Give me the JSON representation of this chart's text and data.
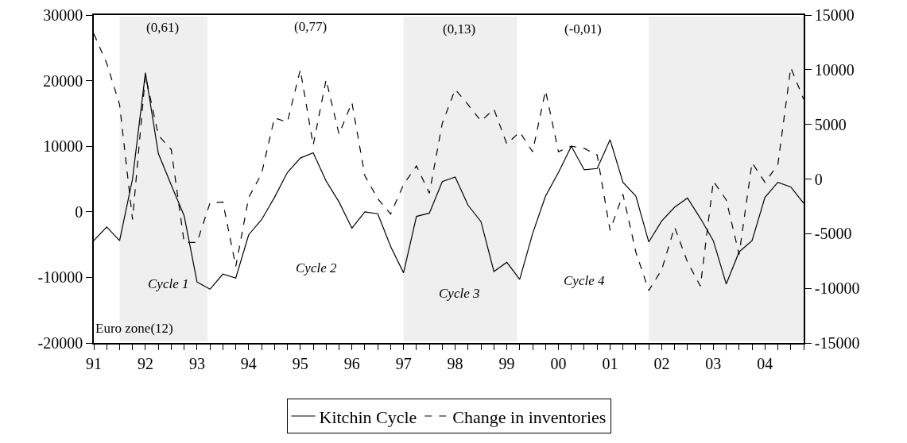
{
  "chart_data": {
    "type": "line",
    "x": [
      1991,
      1991.25,
      1991.5,
      1991.75,
      1992,
      1992.25,
      1992.5,
      1992.75,
      1993,
      1993.25,
      1993.5,
      1993.75,
      1994,
      1994.25,
      1994.5,
      1994.75,
      1995,
      1995.25,
      1995.5,
      1995.75,
      1996,
      1996.25,
      1996.5,
      1996.75,
      1997,
      1997.25,
      1997.5,
      1997.75,
      1998,
      1998.25,
      1998.5,
      1998.75,
      1999,
      1999.25,
      1999.5,
      1999.75,
      2000,
      2000.25,
      2000.5,
      2000.75,
      2001,
      2001.25,
      2001.5,
      2001.75,
      2002,
      2002.25,
      2002.5,
      2002.75,
      2003,
      2003.25,
      2003.5,
      2003.75,
      2004,
      2004.25,
      2004.5,
      2004.75
    ],
    "series": [
      {
        "name": "Kitchin Cycle",
        "color": "#000000",
        "line_style": "solid",
        "values": [
          -4400,
          -2300,
          -4400,
          5000,
          21200,
          8900,
          4100,
          -600,
          -10700,
          -11800,
          -9500,
          -10100,
          -3500,
          -1200,
          2200,
          6000,
          8200,
          9000,
          4700,
          1500,
          -2500,
          0,
          -300,
          -5300,
          -9300,
          -700,
          -200,
          4600,
          5300,
          1000,
          -1500,
          -9100,
          -7700,
          -10300,
          -3300,
          2400,
          6000,
          10000,
          6400,
          6600,
          11000,
          4500,
          2400,
          -4600,
          -1400,
          700,
          2100,
          -1000,
          -4400,
          -11000,
          -6100,
          -4400,
          2200,
          4500,
          3800,
          1300
        ]
      },
      {
        "name": "Change in inventories",
        "color": "#000000",
        "line_style": "dashed",
        "axis": "y2",
        "values": [
          13300,
          10600,
          6800,
          -3700,
          9500,
          4000,
          2700,
          -5800,
          -5800,
          -2200,
          -2100,
          -8000,
          -1700,
          500,
          5600,
          5200,
          10000,
          3100,
          9100,
          4100,
          7000,
          300,
          -1800,
          -3200,
          -500,
          1200,
          -1300,
          5100,
          8200,
          6800,
          5300,
          6400,
          3200,
          4300,
          2500,
          8100,
          2500,
          3000,
          2800,
          2200,
          -4700,
          -1400,
          -6700,
          -10200,
          -8300,
          -4400,
          -7600,
          -9800,
          -200,
          -1900,
          -6900,
          1500,
          -300,
          1300,
          10200,
          7300
        ]
      }
    ],
    "xlim": [
      1991,
      2004.75
    ],
    "xticks": [
      {
        "value": 1991,
        "label": "91"
      },
      {
        "value": 1991.25,
        "label": null
      },
      {
        "value": 1991.5,
        "label": null
      },
      {
        "value": 1991.75,
        "label": null
      },
      {
        "value": 1992,
        "label": "92"
      },
      {
        "value": 1992.25,
        "label": null
      },
      {
        "value": 1992.5,
        "label": null
      },
      {
        "value": 1992.75,
        "label": null
      },
      {
        "value": 1993,
        "label": "93"
      },
      {
        "value": 1993.25,
        "label": null
      },
      {
        "value": 1993.5,
        "label": null
      },
      {
        "value": 1993.75,
        "label": null
      },
      {
        "value": 1994,
        "label": "94"
      },
      {
        "value": 1994.25,
        "label": null
      },
      {
        "value": 1994.5,
        "label": null
      },
      {
        "value": 1994.75,
        "label": null
      },
      {
        "value": 1995,
        "label": "95"
      },
      {
        "value": 1995.25,
        "label": null
      },
      {
        "value": 1995.5,
        "label": null
      },
      {
        "value": 1995.75,
        "label": null
      },
      {
        "value": 1996,
        "label": "96"
      },
      {
        "value": 1996.25,
        "label": null
      },
      {
        "value": 1996.5,
        "label": null
      },
      {
        "value": 1996.75,
        "label": null
      },
      {
        "value": 1997,
        "label": "97"
      },
      {
        "value": 1997.25,
        "label": null
      },
      {
        "value": 1997.5,
        "label": null
      },
      {
        "value": 1997.75,
        "label": null
      },
      {
        "value": 1998,
        "label": "98"
      },
      {
        "value": 1998.25,
        "label": null
      },
      {
        "value": 1998.5,
        "label": null
      },
      {
        "value": 1998.75,
        "label": null
      },
      {
        "value": 1999,
        "label": "99"
      },
      {
        "value": 1999.25,
        "label": null
      },
      {
        "value": 1999.5,
        "label": null
      },
      {
        "value": 1999.75,
        "label": null
      },
      {
        "value": 2000,
        "label": "00"
      },
      {
        "value": 2000.25,
        "label": null
      },
      {
        "value": 2000.5,
        "label": null
      },
      {
        "value": 2000.75,
        "label": null
      },
      {
        "value": 2001,
        "label": "01"
      },
      {
        "value": 2001.25,
        "label": null
      },
      {
        "value": 2001.5,
        "label": null
      },
      {
        "value": 2001.75,
        "label": null
      },
      {
        "value": 2002,
        "label": "02"
      },
      {
        "value": 2002.25,
        "label": null
      },
      {
        "value": 2002.5,
        "label": null
      },
      {
        "value": 2002.75,
        "label": null
      },
      {
        "value": 2003,
        "label": "03"
      },
      {
        "value": 2003.25,
        "label": null
      },
      {
        "value": 2003.5,
        "label": null
      },
      {
        "value": 2003.75,
        "label": null
      },
      {
        "value": 2004,
        "label": "04"
      },
      {
        "value": 2004.25,
        "label": null
      },
      {
        "value": 2004.5,
        "label": null
      },
      {
        "value": 2004.75,
        "label": null
      }
    ],
    "ylim": [
      -20000,
      30000
    ],
    "yticks": [
      -20000,
      -10000,
      0,
      10000,
      20000,
      30000
    ],
    "y2lim": [
      -15000,
      15000
    ],
    "y2ticks": [
      -15000,
      -10000,
      -5000,
      0,
      5000,
      10000,
      15000
    ],
    "bands": [
      {
        "axis": "x",
        "from": 1991.5,
        "to": 1993.2,
        "color": "#efefef"
      },
      {
        "axis": "x",
        "from": 1997,
        "to": 1999.2,
        "color": "#efefef"
      },
      {
        "axis": "x",
        "from": 2001.75,
        "to": 2004.75,
        "color": "#efefef"
      }
    ],
    "annotations": [
      "(0,61)",
      "(0,77)",
      "(0,13)",
      "(-0,01)",
      "Cycle 1",
      "Cycle 2",
      "Cycle 3",
      "Cycle 4",
      "Euro zone(12)"
    ],
    "grid": false,
    "legend": "bottom",
    "marker": "none"
  }
}
